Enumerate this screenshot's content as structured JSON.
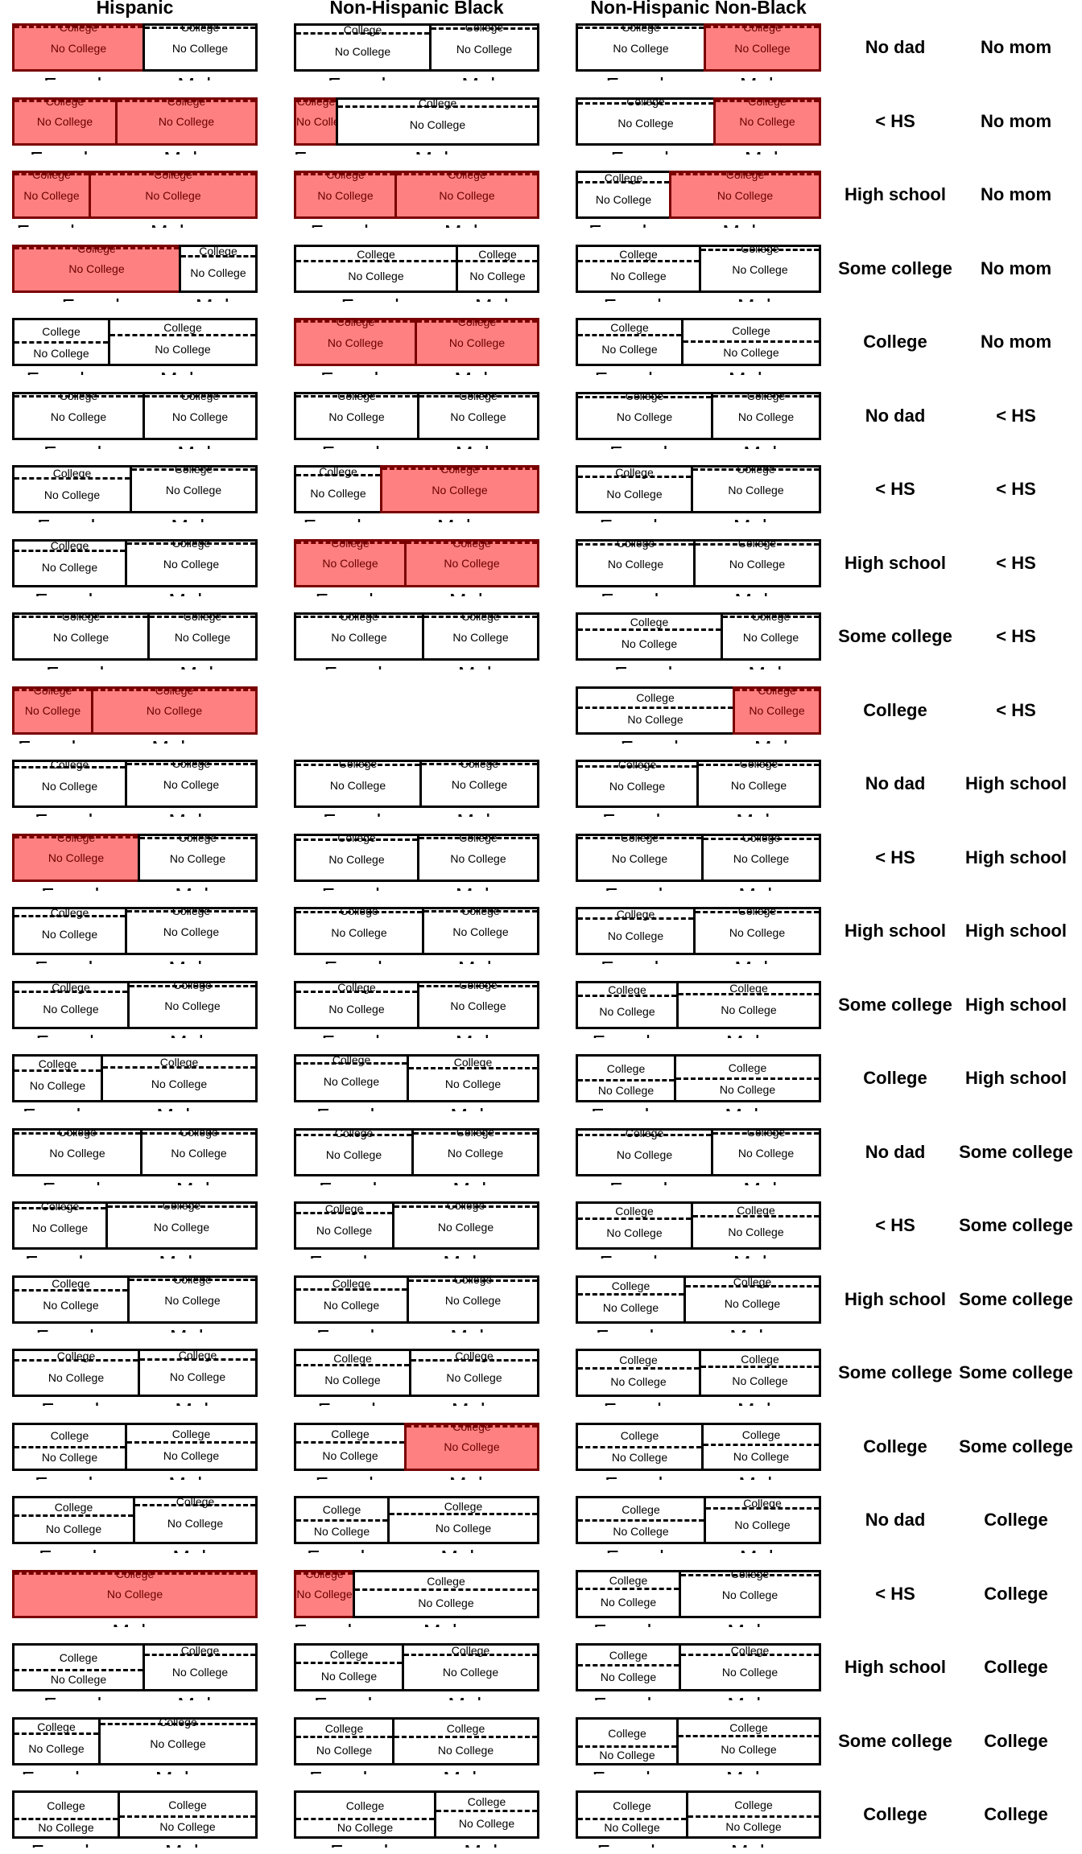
{
  "chart_data": {
    "type": "mosaic",
    "title": "",
    "columns": [
      "Hispanic",
      "Non-Hispanic Black",
      "Non-Hispanic Non-Black"
    ],
    "labels": {
      "college": "College",
      "no_college": "No College",
      "female": "Female",
      "male": "Male"
    },
    "colors": {
      "significant_fill": "#ff8080",
      "significant_border": "#7a0000",
      "border": "#000000"
    },
    "value_legend": "panels[c] = [female share of width, female college share, male college share, female highlighted, male highlighted]",
    "rows": [
      {
        "dad": "No dad",
        "mom": "No mom",
        "panels": [
          [
            0.54,
            0.02,
            0.05,
            1,
            0
          ],
          [
            0.56,
            0.17,
            0.07,
            0,
            0
          ],
          [
            0.53,
            0.05,
            0.02,
            0,
            1
          ]
        ]
      },
      {
        "dad": "< HS",
        "mom": "No mom",
        "panels": [
          [
            0.43,
            0.03,
            0.03,
            1,
            1
          ],
          [
            0.18,
            0.03,
            0.17,
            1,
            0
          ],
          [
            0.57,
            0.1,
            0.03,
            0,
            1
          ]
        ]
      },
      {
        "dad": "High school",
        "mom": "No mom",
        "panels": [
          [
            0.32,
            0.03,
            0.03,
            1,
            1
          ],
          [
            0.42,
            0.03,
            0.03,
            1,
            1
          ],
          [
            0.39,
            0.22,
            0.03,
            0,
            1
          ]
        ]
      },
      {
        "dad": "Some college",
        "mom": "No mom",
        "panels": [
          [
            0.69,
            0.03,
            0.22,
            1,
            0
          ],
          [
            0.67,
            0.34,
            0.34,
            0,
            0
          ],
          [
            0.51,
            0.34,
            0.07,
            0,
            0
          ]
        ]
      },
      {
        "dad": "College",
        "mom": "No mom",
        "panels": [
          [
            0.4,
            0.51,
            0.34,
            0,
            0
          ],
          [
            0.5,
            0.03,
            0.03,
            1,
            1
          ],
          [
            0.44,
            0.34,
            0.49,
            0,
            0
          ]
        ]
      },
      {
        "dad": "No dad",
        "mom": "< HS",
        "panels": [
          [
            0.54,
            0.05,
            0.05,
            0,
            0
          ],
          [
            0.51,
            0.05,
            0.05,
            0,
            0
          ],
          [
            0.56,
            0.07,
            0.05,
            0,
            0
          ]
        ]
      },
      {
        "dad": "< HS",
        "mom": "< HS",
        "panels": [
          [
            0.49,
            0.25,
            0.05,
            0,
            0
          ],
          [
            0.36,
            0.17,
            0.03,
            0,
            1
          ],
          [
            0.48,
            0.22,
            0.05,
            0,
            0
          ]
        ]
      },
      {
        "dad": "High school",
        "mom": "< HS",
        "panels": [
          [
            0.47,
            0.22,
            0.05,
            0,
            0
          ],
          [
            0.46,
            0.03,
            0.03,
            1,
            1
          ],
          [
            0.49,
            0.07,
            0.07,
            0,
            0
          ]
        ]
      },
      {
        "dad": "Some college",
        "mom": "< HS",
        "panels": [
          [
            0.56,
            0.05,
            0.05,
            0,
            0
          ],
          [
            0.53,
            0.05,
            0.05,
            0,
            0
          ],
          [
            0.6,
            0.34,
            0.05,
            0,
            0
          ]
        ]
      },
      {
        "dad": "College",
        "mom": "< HS",
        "panels": [
          [
            0.33,
            0.03,
            0.03,
            1,
            1
          ],
          null,
          [
            0.65,
            0.44,
            0.03,
            0,
            1
          ]
        ]
      },
      {
        "dad": "No dad",
        "mom": "High school",
        "panels": [
          [
            0.47,
            0.12,
            0.05,
            0,
            0
          ],
          [
            0.52,
            0.07,
            0.05,
            0,
            0
          ],
          [
            0.5,
            0.1,
            0.07,
            0,
            0
          ]
        ]
      },
      {
        "dad": "< HS",
        "mom": "High school",
        "panels": [
          [
            0.52,
            0.03,
            0.05,
            1,
            0
          ],
          [
            0.51,
            0.1,
            0.05,
            0,
            0
          ],
          [
            0.52,
            0.05,
            0.07,
            0,
            0
          ]
        ]
      },
      {
        "dad": "High school",
        "mom": "High school",
        "panels": [
          [
            0.47,
            0.15,
            0.05,
            0,
            0
          ],
          [
            0.53,
            0.07,
            0.05,
            0,
            0
          ],
          [
            0.49,
            0.22,
            0.07,
            0,
            0
          ]
        ]
      },
      {
        "dad": "Some college",
        "mom": "High school",
        "panels": [
          [
            0.48,
            0.2,
            0.07,
            0,
            0
          ],
          [
            0.51,
            0.2,
            0.07,
            0,
            0
          ],
          [
            0.42,
            0.3,
            0.25,
            0,
            0
          ]
        ]
      },
      {
        "dad": "College",
        "mom": "High school",
        "panels": [
          [
            0.37,
            0.32,
            0.25,
            0,
            0
          ],
          [
            0.47,
            0.15,
            0.27,
            0,
            0
          ],
          [
            0.41,
            0.54,
            0.51,
            0,
            0
          ]
        ]
      },
      {
        "dad": "No dad",
        "mom": "Some college",
        "panels": [
          [
            0.53,
            0.07,
            0.07,
            0,
            0
          ],
          [
            0.49,
            0.12,
            0.07,
            0,
            0
          ],
          [
            0.56,
            0.12,
            0.07,
            0,
            0
          ]
        ]
      },
      {
        "dad": "< HS",
        "mom": "Some college",
        "panels": [
          [
            0.39,
            0.1,
            0.07,
            0,
            0
          ],
          [
            0.41,
            0.22,
            0.07,
            0,
            0
          ],
          [
            0.48,
            0.34,
            0.29,
            0,
            0
          ]
        ]
      },
      {
        "dad": "High school",
        "mom": "Some college",
        "panels": [
          [
            0.48,
            0.29,
            0.05,
            0,
            0
          ],
          [
            0.47,
            0.27,
            0.07,
            0,
            0
          ],
          [
            0.45,
            0.39,
            0.2,
            0,
            0
          ]
        ]
      },
      {
        "dad": "Some college",
        "mom": "Some college",
        "panels": [
          [
            0.52,
            0.22,
            0.2,
            0,
            0
          ],
          [
            0.48,
            0.32,
            0.22,
            0,
            0
          ],
          [
            0.51,
            0.39,
            0.37,
            0,
            0
          ]
        ]
      },
      {
        "dad": "College",
        "mom": "Some college",
        "panels": [
          [
            0.47,
            0.51,
            0.41,
            0,
            0
          ],
          [
            0.46,
            0.41,
            0.03,
            0,
            1
          ],
          [
            0.52,
            0.51,
            0.46,
            0,
            0
          ]
        ]
      },
      {
        "dad": "No dad",
        "mom": "College",
        "panels": [
          [
            0.5,
            0.39,
            0.15,
            0,
            0
          ],
          [
            0.39,
            0.51,
            0.37,
            0,
            0
          ],
          [
            0.53,
            0.51,
            0.24,
            0,
            0
          ]
        ]
      },
      {
        "dad": "< HS",
        "mom": "College",
        "panels": [
          [
            0.0,
            0.0,
            0.03,
            0,
            1
          ],
          [
            0.25,
            0.03,
            0.41,
            1,
            0
          ],
          [
            0.43,
            0.39,
            0.07,
            0,
            0
          ]
        ]
      },
      {
        "dad": "High school",
        "mom": "College",
        "panels": [
          [
            0.54,
            0.56,
            0.22,
            0,
            0
          ],
          [
            0.45,
            0.39,
            0.22,
            0,
            0
          ],
          [
            0.43,
            0.46,
            0.22,
            0,
            0
          ]
        ]
      },
      {
        "dad": "Some college",
        "mom": "College",
        "panels": [
          [
            0.36,
            0.34,
            0.12,
            0,
            0
          ],
          [
            0.41,
            0.41,
            0.41,
            0,
            0
          ],
          [
            0.42,
            0.63,
            0.39,
            0,
            0
          ]
        ]
      },
      {
        "dad": "College",
        "mom": "College",
        "panels": [
          [
            0.44,
            0.61,
            0.54,
            0,
            0
          ],
          [
            0.58,
            0.61,
            0.41,
            0,
            0
          ],
          [
            0.46,
            0.61,
            0.54,
            0,
            0
          ]
        ]
      }
    ]
  }
}
